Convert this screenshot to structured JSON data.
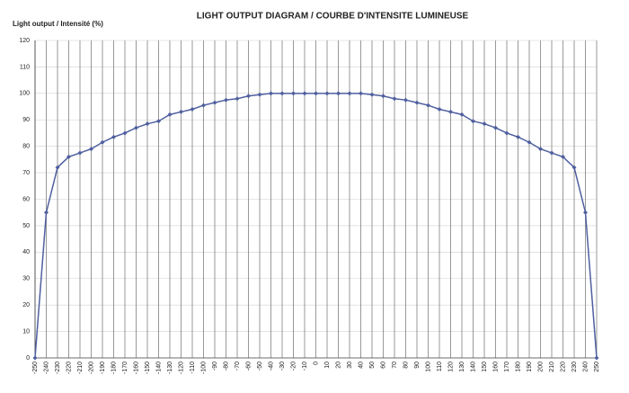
{
  "chart_data": {
    "type": "line",
    "title": "LIGHT OUTPUT DIAGRAM / COURBE D'INTENSITE LUMINEUSE",
    "y_label": "Light output / Intensité (%)",
    "x": [
      -250,
      -240,
      -230,
      -220,
      -210,
      -200,
      -190,
      -180,
      -170,
      -160,
      -150,
      -140,
      -130,
      -120,
      -110,
      -100,
      -90,
      -80,
      -70,
      -60,
      -50,
      -40,
      -30,
      -20,
      -10,
      0,
      10,
      20,
      30,
      40,
      50,
      60,
      70,
      80,
      90,
      100,
      110,
      120,
      130,
      140,
      150,
      160,
      170,
      180,
      190,
      200,
      210,
      220,
      230,
      240,
      250
    ],
    "series": [
      {
        "color": "#4f5f9f",
        "values": [
          0,
          55,
          72,
          76,
          77.5,
          79,
          81.5,
          83.5,
          85,
          87,
          88.5,
          89.5,
          92,
          93,
          94,
          95.5,
          96.5,
          97.5,
          98,
          99,
          99.5,
          100,
          100,
          100,
          100,
          100,
          100,
          100,
          100,
          100,
          99.5,
          99,
          98,
          97.5,
          96.5,
          95.5,
          94,
          93,
          92,
          89.5,
          88.5,
          87,
          85,
          83.5,
          81.5,
          79,
          77.5,
          76,
          72,
          55,
          0
        ]
      }
    ],
    "xlim": [
      -250,
      250
    ],
    "xticks": [
      -250,
      -240,
      -230,
      -220,
      -210,
      -200,
      -190,
      -180,
      -170,
      -160,
      -150,
      -140,
      -130,
      -120,
      -110,
      -100,
      -90,
      -80,
      -70,
      -60,
      -50,
      -40,
      -30,
      -20,
      -10,
      0,
      10,
      20,
      30,
      40,
      50,
      60,
      70,
      80,
      90,
      100,
      110,
      120,
      130,
      140,
      150,
      160,
      170,
      180,
      190,
      200,
      210,
      220,
      230,
      240,
      250
    ],
    "ylim": [
      0,
      120
    ],
    "yticks": [
      0,
      10,
      20,
      30,
      40,
      50,
      60,
      70,
      80,
      90,
      100,
      110,
      120
    ],
    "grid": true
  }
}
